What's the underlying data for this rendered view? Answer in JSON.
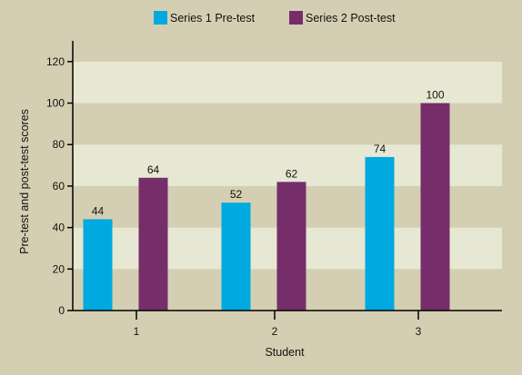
{
  "chart_data": {
    "type": "bar",
    "categories": [
      "1",
      "2",
      "3"
    ],
    "series": [
      {
        "name": "Series 1 Pre-test",
        "values": [
          44,
          52,
          74
        ],
        "color": "#00a9e0"
      },
      {
        "name": "Series 2 Post-test",
        "values": [
          64,
          62,
          100
        ],
        "color": "#762e6a"
      }
    ],
    "data_labels": [
      [
        "44",
        "52",
        "74"
      ],
      [
        "64",
        "62",
        "100"
      ]
    ],
    "xlabel": "Student",
    "ylabel": "Pre-test and post-test scores",
    "ylim": [
      0,
      130
    ],
    "yticks": [
      0,
      20,
      40,
      60,
      80,
      100,
      120
    ],
    "grid": "alternating horizontal bands",
    "legend": "top-center",
    "colors": {
      "background": "#d4cfb2",
      "band_light": "#e7e8d3",
      "band_dark": "#d4cfb2",
      "axis": "#000000"
    }
  }
}
